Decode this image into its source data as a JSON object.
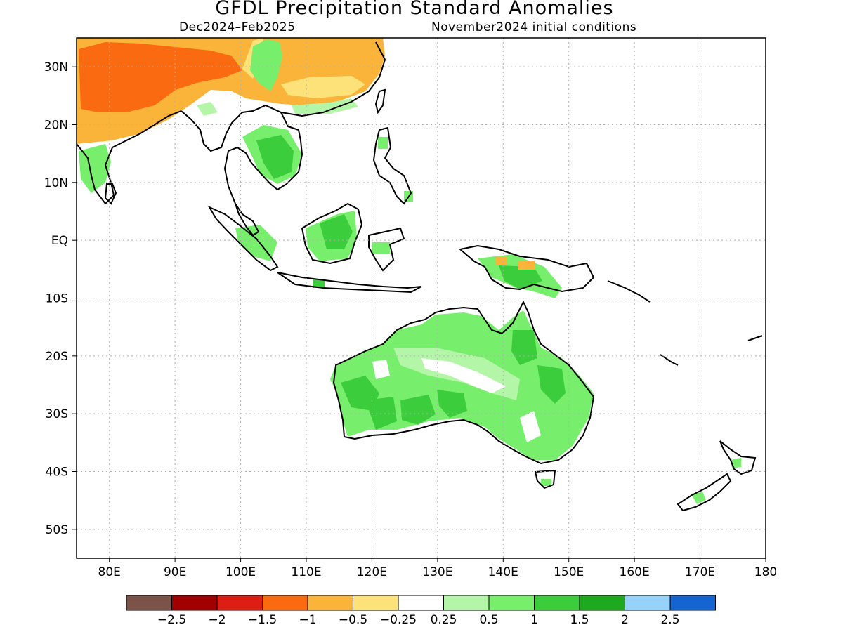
{
  "title": "GFDL Precipitation Standard Anomalies",
  "subtitle_left": "Dec2024–Feb2025",
  "subtitle_right": "November2024 initial conditions",
  "map": {
    "lon_range": [
      75,
      180
    ],
    "lat_range": [
      -55,
      35
    ],
    "grid": true,
    "lat_labels": [
      {
        "lat": 30,
        "text": "30N"
      },
      {
        "lat": 20,
        "text": "20N"
      },
      {
        "lat": 10,
        "text": "10N"
      },
      {
        "lat": 0,
        "text": "EQ"
      },
      {
        "lat": -10,
        "text": "10S"
      },
      {
        "lat": -20,
        "text": "20S"
      },
      {
        "lat": -30,
        "text": "30S"
      },
      {
        "lat": -40,
        "text": "40S"
      },
      {
        "lat": -50,
        "text": "50S"
      }
    ],
    "lon_labels": [
      {
        "lon": 80,
        "text": "80E"
      },
      {
        "lon": 90,
        "text": "90E"
      },
      {
        "lon": 100,
        "text": "100E"
      },
      {
        "lon": 110,
        "text": "110E"
      },
      {
        "lon": 120,
        "text": "120E"
      },
      {
        "lon": 130,
        "text": "130E"
      },
      {
        "lon": 140,
        "text": "140E"
      },
      {
        "lon": 150,
        "text": "150E"
      },
      {
        "lon": 160,
        "text": "160E"
      },
      {
        "lon": 170,
        "text": "170E"
      },
      {
        "lon": 180,
        "text": "180"
      }
    ]
  },
  "colorbar": {
    "colors": [
      "#7b5348",
      "#a00000",
      "#dc1e14",
      "#fa6a10",
      "#fbb43a",
      "#fde27a",
      "#ffffff",
      "#b4f6a8",
      "#78ef6c",
      "#3ccd3c",
      "#1eaa1e",
      "#96d2fa",
      "#1464d2"
    ],
    "labels": [
      "-2.5",
      "-2",
      "-1.5",
      "-1",
      "-0.5",
      "-0.25",
      "0.25",
      "0.5",
      "1",
      "1.5",
      "2",
      "2.5"
    ]
  }
}
